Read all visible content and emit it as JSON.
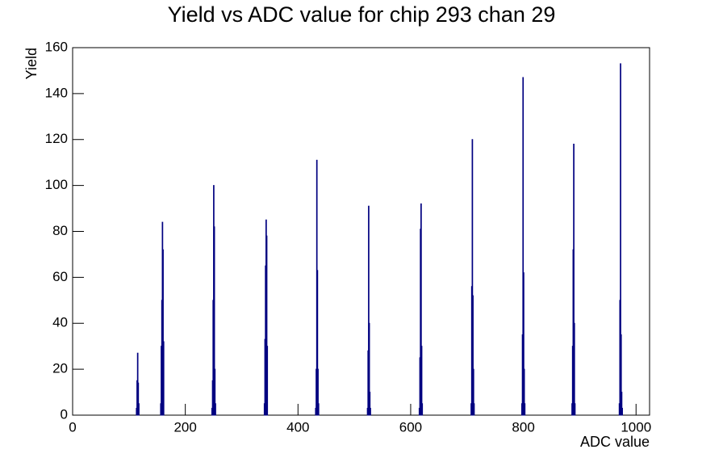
{
  "chart_data": {
    "type": "histogram",
    "title": "Yield vs ADC value for chip 293 chan 29",
    "x_label": "ADC value",
    "y_label": "Yield",
    "color": "#000080",
    "bins": [
      0,
      113,
      114,
      115,
      116,
      117,
      118,
      156,
      157,
      158,
      159,
      160,
      161,
      162,
      247,
      248,
      249,
      250,
      251,
      252,
      253,
      254,
      340,
      341,
      342,
      343,
      344,
      345,
      346,
      431,
      432,
      433,
      434,
      435,
      436,
      437,
      523,
      524,
      525,
      526,
      527,
      528,
      529,
      615,
      616,
      617,
      618,
      619,
      620,
      621,
      707,
      708,
      709,
      710,
      711,
      712,
      713,
      797,
      798,
      799,
      800,
      801,
      802,
      803,
      886,
      887,
      888,
      889,
      890,
      891,
      892,
      970,
      971,
      972,
      973,
      974,
      975,
      976,
      1024
    ],
    "counts": [
      0,
      3,
      15,
      27,
      14,
      5,
      0,
      5,
      30,
      50,
      84,
      72,
      32,
      0,
      3,
      15,
      50,
      100,
      82,
      20,
      5,
      0,
      5,
      33,
      65,
      85,
      78,
      30,
      0,
      3,
      20,
      111,
      63,
      20,
      5,
      0,
      3,
      28,
      91,
      40,
      10,
      3,
      0,
      3,
      25,
      81,
      92,
      30,
      5,
      0,
      5,
      56,
      120,
      52,
      20,
      5,
      0,
      5,
      35,
      147,
      62,
      20,
      5,
      0,
      5,
      30,
      72,
      118,
      40,
      5,
      0,
      5,
      50,
      153,
      35,
      10,
      3,
      0
    ],
    "xlim": [
      0,
      1024
    ],
    "ylim": [
      0,
      160
    ],
    "xticks": [
      0,
      200,
      400,
      600,
      800,
      1000
    ],
    "yticks": [
      0,
      20,
      40,
      60,
      80,
      100,
      120,
      140,
      160
    ]
  }
}
